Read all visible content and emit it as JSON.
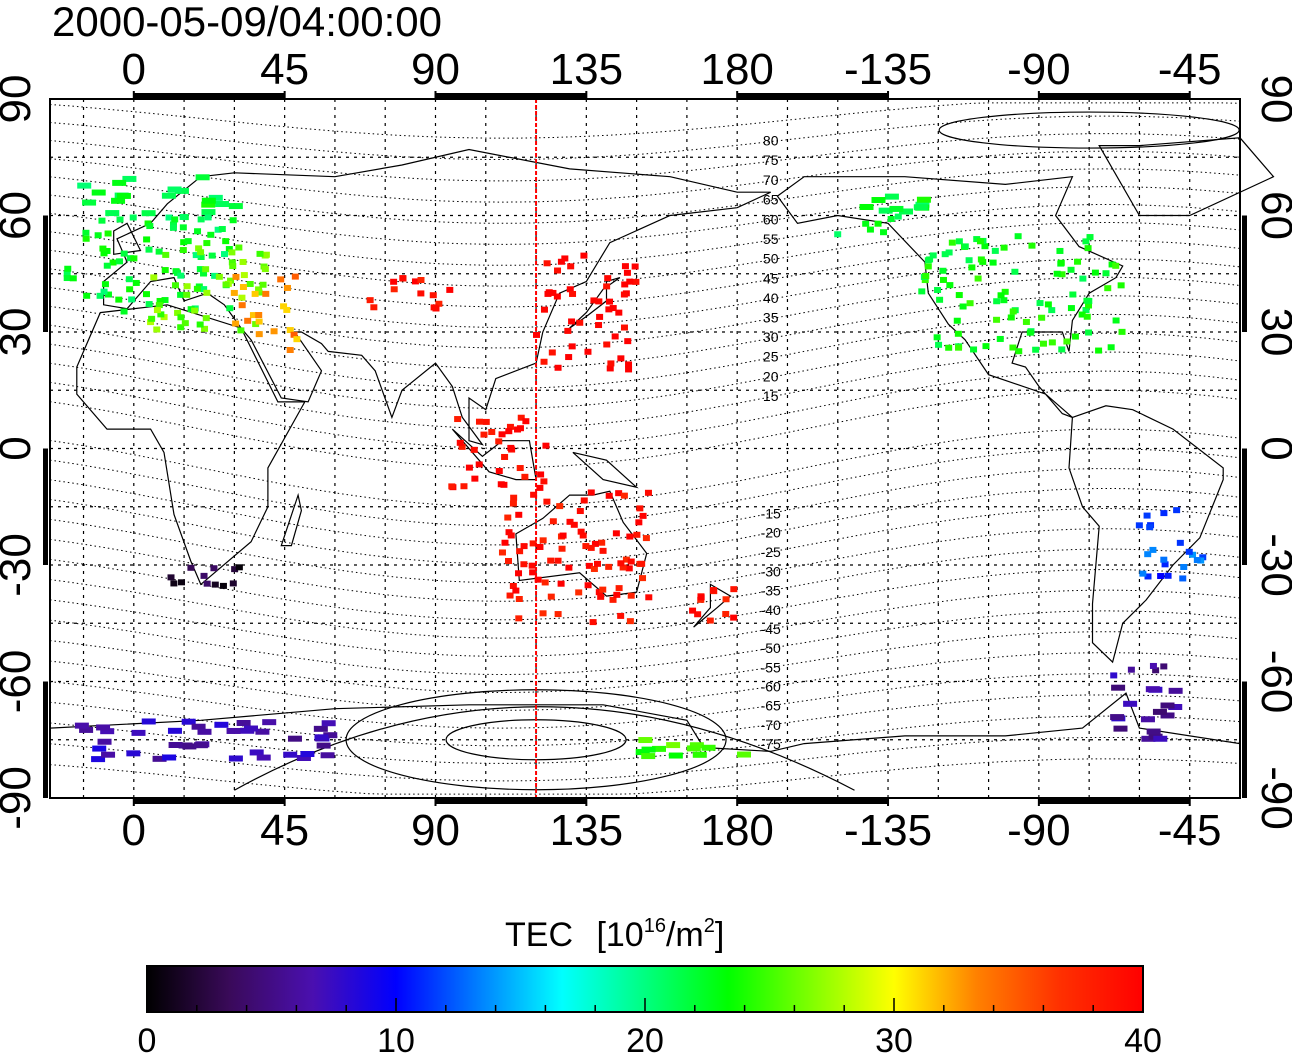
{
  "title": "2000-05-09/04:00:00",
  "map": {
    "lon_min": -25,
    "lon_max": 330,
    "lat_min": -90,
    "lat_max": 90,
    "top_lon_ticks": [
      "0",
      "45",
      "90",
      "135",
      "180",
      "-135",
      "-90",
      "-45"
    ],
    "bottom_lon_ticks": [
      "0",
      "45",
      "90",
      "135",
      "180",
      "-135",
      "-90",
      "-45"
    ],
    "lat_ticks": [
      "90",
      "60",
      "30",
      "0",
      "-30",
      "-60",
      "-90"
    ],
    "tick_lon_values": [
      0,
      45,
      90,
      135,
      180,
      225,
      270,
      315
    ],
    "tick_lat_values": [
      90,
      60,
      30,
      0,
      -30,
      -60,
      -90
    ],
    "subsolar_meridian_lon": 120,
    "marker_color": "#ff0000"
  },
  "magnetic_contours": {
    "labels_north": [
      "80",
      "75",
      "70",
      "65",
      "60",
      "55",
      "50",
      "45",
      "40",
      "35",
      "30",
      "25",
      "20",
      "15"
    ],
    "labels_south": [
      "-15",
      "-20",
      "-25",
      "-30",
      "-35",
      "-40",
      "-45",
      "-50",
      "-55",
      "-60",
      "-65",
      "-70",
      "-75"
    ]
  },
  "colorbar": {
    "label_main": "TEC",
    "label_unit_prefix": "[10",
    "label_unit_exp": "16",
    "label_unit_mid": "/m",
    "label_unit_exp2": "2",
    "label_unit_suffix": "]",
    "ticks": [
      "0",
      "10",
      "20",
      "30",
      "40"
    ],
    "min": 0,
    "max": 40,
    "colors": [
      "#000000",
      "#3a0a5a",
      "#4a0fb0",
      "#0000ff",
      "#0080ff",
      "#00ffff",
      "#00ff80",
      "#00ff00",
      "#80ff00",
      "#ffff00",
      "#ff8000",
      "#ff3000",
      "#ff0000"
    ]
  },
  "chart_data": {
    "type": "scatter",
    "title": "2000-05-09/04:00:00",
    "value_label": "TEC [10^16/m^2]",
    "xlim": [
      -25,
      330
    ],
    "ylim": [
      -90,
      90
    ],
    "points_note": "",
    "regions": [
      {
        "lon_range": [
          -20,
          30
        ],
        "lat_range": [
          35,
          70
        ],
        "tec": 22
      },
      {
        "lon_range": [
          5,
          40
        ],
        "lat_range": [
          30,
          55
        ],
        "tec": 26
      },
      {
        "lon_range": [
          30,
          50
        ],
        "lat_range": [
          25,
          45
        ],
        "tec": 33
      },
      {
        "lon_range": [
          70,
          95
        ],
        "lat_range": [
          35,
          45
        ],
        "tec": 39
      },
      {
        "lon_range": [
          120,
          150
        ],
        "lat_range": [
          20,
          50
        ],
        "tec": 40
      },
      {
        "lon_range": [
          95,
          125
        ],
        "lat_range": [
          -10,
          10
        ],
        "tec": 40
      },
      {
        "lon_range": [
          110,
          155
        ],
        "lat_range": [
          -45,
          -10
        ],
        "tec": 39
      },
      {
        "lon_range": [
          165,
          180
        ],
        "lat_range": [
          -47,
          -35
        ],
        "tec": 39
      },
      {
        "lon_range": [
          10,
          35
        ],
        "lat_range": [
          -38,
          -30
        ],
        "tec": 2
      },
      {
        "lon_range": [
          235,
          295
        ],
        "lat_range": [
          25,
          55
        ],
        "tec": 23
      },
      {
        "lon_range": [
          210,
          240
        ],
        "lat_range": [
          55,
          65
        ],
        "tec": 22
      },
      {
        "lon_range": [
          300,
          320
        ],
        "lat_range": [
          -35,
          -15
        ],
        "tec": 12
      },
      {
        "lon_range": [
          290,
          310
        ],
        "lat_range": [
          -75,
          -55
        ],
        "tec": 6
      },
      {
        "lon_range": [
          -20,
          60
        ],
        "lat_range": [
          -80,
          -70
        ],
        "tec": 7
      },
      {
        "lon_range": [
          150,
          185
        ],
        "lat_range": [
          -80,
          -75
        ],
        "tec": 25
      }
    ]
  }
}
